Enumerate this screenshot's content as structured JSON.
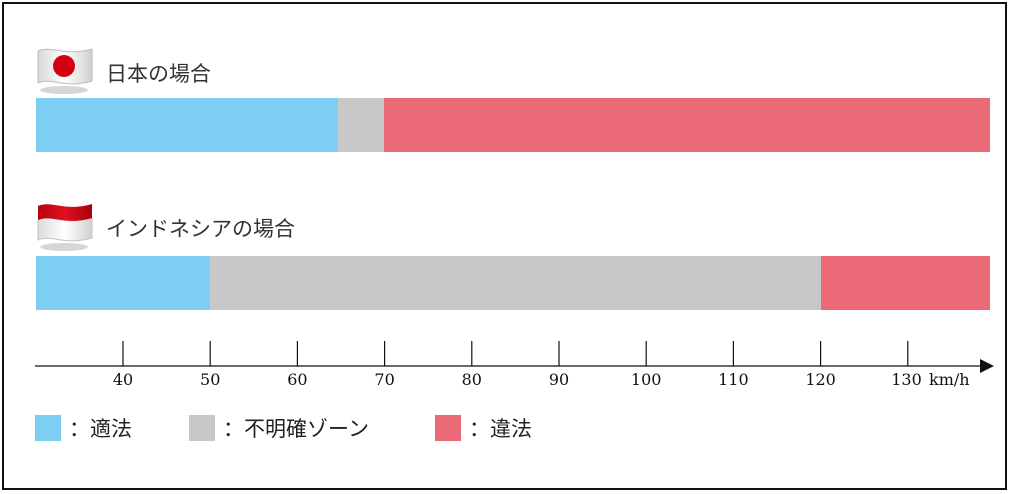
{
  "colors": {
    "legal": "#7ecdf2",
    "unclear": "#c8c8c8",
    "illegal": "#ea6b77"
  },
  "japan": {
    "title": "日本の場合",
    "flag_icon": "japan-flag-icon",
    "segments": [
      {
        "kind": "legal",
        "from_kmh": 30,
        "to_kmh": 64.6
      },
      {
        "kind": "unclear",
        "from_kmh": 64.6,
        "to_kmh": 69.9
      },
      {
        "kind": "illegal",
        "from_kmh": 69.9,
        "to_kmh": 139.7
      }
    ]
  },
  "indonesia": {
    "title": "インドネシアの場合",
    "flag_icon": "indonesia-flag-icon",
    "segments": [
      {
        "kind": "legal",
        "from_kmh": 30,
        "to_kmh": 50
      },
      {
        "kind": "unclear",
        "from_kmh": 50,
        "to_kmh": 120
      },
      {
        "kind": "illegal",
        "from_kmh": 120,
        "to_kmh": 139.7
      }
    ]
  },
  "axis": {
    "ticks": [
      40,
      50,
      60,
      70,
      80,
      90,
      100,
      110,
      120,
      130
    ],
    "unit": "km/h",
    "range": [
      28.7,
      143.5
    ]
  },
  "legend": {
    "legal_label": "：適法",
    "unclear_label": "：不明確ゾーン",
    "illegal_label": "：違法"
  }
}
